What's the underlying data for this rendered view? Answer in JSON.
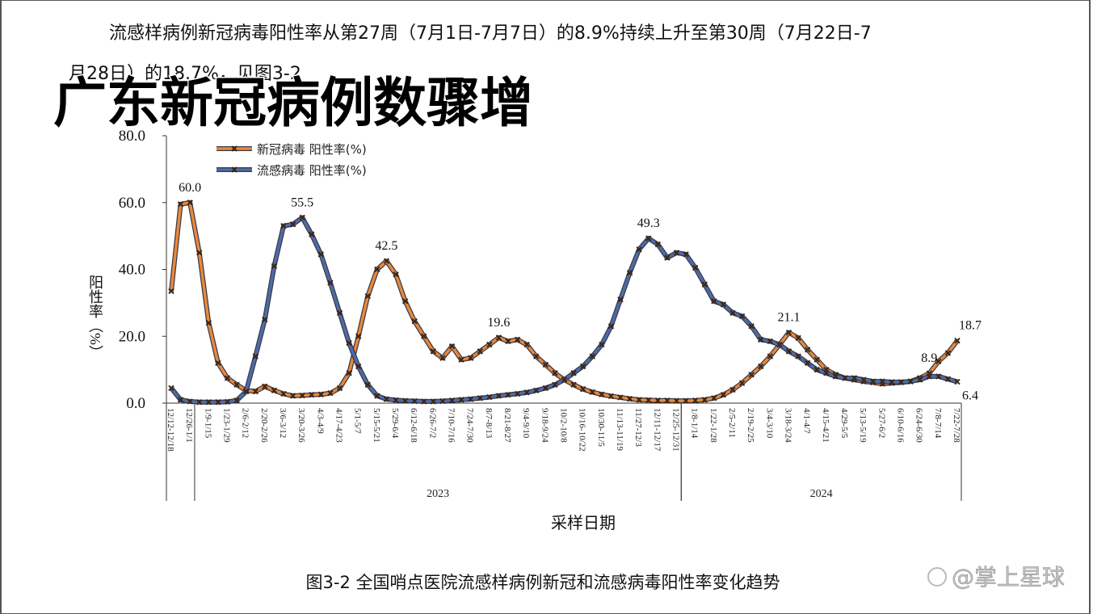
{
  "header": {
    "line1": "流感样病例新冠病毒阳性率从第27周（7月1日-7月7日）的8.9%持续上升至第30周（7月22日-7",
    "line2": "月28日）的18.7%，见图3-2"
  },
  "overlay_title": "广东新冠病例数骤增",
  "chart_data": {
    "type": "line",
    "y_label": "阳性率（%）",
    "x_label": "采样日期",
    "categories": [
      "12/12-12/18",
      null,
      "12/26-1/1",
      null,
      "1/9-1/15",
      null,
      "1/23-1/29",
      null,
      "2/6-2/12",
      null,
      "2/20-2/26",
      null,
      "3/6-3/12",
      null,
      "3/20-3/26",
      null,
      "4/3-4/9",
      null,
      "4/17-4/23",
      null,
      "5/1-5/7",
      null,
      "5/15-5/21",
      null,
      "5/29-6/4",
      null,
      "6/12-6/18",
      null,
      "6/26-7/2",
      null,
      "7/10-7/16",
      null,
      "7/24-7/30",
      null,
      "8/7-8/13",
      null,
      "8/21-8/27",
      null,
      "9/4-9/10",
      null,
      "9/18-9/24",
      null,
      "10/2-10/8",
      null,
      "10/16-10/22",
      null,
      "10/30-11/5",
      null,
      "11/13-11/19",
      null,
      "11/27-12/3",
      null,
      "12/11-12/17",
      null,
      "12/25-12/31",
      null,
      "1/8-1/14",
      null,
      "1/22-1/28",
      null,
      "2/5-2/11",
      null,
      "2/19-2/25",
      null,
      "3/4-3/10",
      null,
      "3/18-3/24",
      null,
      "4/1-4/7",
      null,
      "4/15-4/21",
      null,
      "4/29-5/5",
      null,
      "5/13-5/19",
      null,
      "5/27-6/2",
      null,
      "6/10-6/16",
      null,
      "6/24-6/30",
      null,
      "7/8-7/14",
      null,
      "7/22-7/28"
    ],
    "x_groups": [
      {
        "label": "2023",
        "start": 3,
        "end": 54
      },
      {
        "label": "2024",
        "start": 55,
        "end": 84
      }
    ],
    "series": [
      {
        "name": "新冠病毒 阳性率(%)",
        "color": "#e8893a",
        "values": [
          33.5,
          59.5,
          60,
          45,
          24,
          12,
          7.5,
          5.5,
          3.8,
          3.5,
          5,
          3.8,
          2.8,
          2.2,
          2.3,
          2.5,
          2.6,
          3,
          4.5,
          9,
          20,
          32,
          40,
          42.5,
          38.5,
          30.5,
          24.5,
          20,
          15.5,
          13.5,
          17,
          13,
          13.5,
          15.5,
          17.5,
          19.6,
          18.5,
          19,
          17.5,
          14,
          11.5,
          9,
          7,
          5.5,
          4.2,
          3.3,
          2.6,
          2.1,
          1.7,
          1.3,
          1,
          0.9,
          0.8,
          0.8,
          0.7,
          0.7,
          0.8,
          1,
          1.5,
          2.5,
          4,
          6,
          8.5,
          11,
          14,
          17.5,
          21.1,
          19.5,
          16,
          13,
          10,
          8.5,
          7.5,
          7,
          6.5,
          6.2,
          5.8,
          6,
          6.2,
          6.5,
          7.5,
          8.9,
          12.5,
          15,
          18.7
        ],
        "value_labels": [
          null,
          null,
          "60.0",
          null,
          null,
          null,
          null,
          null,
          null,
          null,
          null,
          null,
          null,
          null,
          null,
          null,
          null,
          null,
          null,
          null,
          null,
          null,
          null,
          "42.5",
          null,
          null,
          null,
          null,
          null,
          null,
          null,
          null,
          null,
          null,
          null,
          "19.6",
          null,
          null,
          null,
          null,
          null,
          null,
          null,
          null,
          null,
          null,
          null,
          null,
          null,
          null,
          null,
          null,
          null,
          null,
          null,
          null,
          null,
          null,
          null,
          null,
          null,
          null,
          null,
          null,
          null,
          null,
          "21.1",
          null,
          null,
          null,
          null,
          null,
          null,
          null,
          null,
          null,
          null,
          null,
          null,
          null,
          null,
          "8.9",
          null,
          null,
          "18.7"
        ]
      },
      {
        "name": "流感病毒 阳性率(%)",
        "color": "#4d6ca8",
        "values": [
          4.5,
          1,
          0.5,
          0.3,
          0.3,
          0.3,
          0.4,
          0.8,
          3.5,
          14,
          25,
          41,
          53,
          53.5,
          55.5,
          50.5,
          44.5,
          36,
          27,
          18,
          11,
          5.5,
          2.2,
          1.2,
          0.9,
          0.7,
          0.6,
          0.5,
          0.5,
          0.6,
          0.8,
          1,
          1.2,
          1.5,
          1.8,
          2.2,
          2.5,
          2.8,
          3.2,
          3.8,
          4.5,
          5.5,
          7,
          9,
          11,
          14,
          17.5,
          23,
          31,
          39,
          46,
          49.3,
          47.5,
          43.5,
          45,
          44.5,
          40.5,
          35.5,
          30.5,
          29.5,
          27,
          26,
          23,
          19,
          18.5,
          17.5,
          15.5,
          14,
          12,
          10,
          9,
          8,
          7.5,
          7.5,
          7,
          6.5,
          6.5,
          6.3,
          6.3,
          6.5,
          7,
          8,
          8,
          7.2,
          6.4
        ],
        "value_labels": [
          null,
          null,
          null,
          null,
          null,
          null,
          null,
          null,
          null,
          null,
          null,
          null,
          null,
          null,
          "55.5",
          null,
          null,
          null,
          null,
          null,
          null,
          null,
          null,
          null,
          null,
          null,
          null,
          null,
          null,
          null,
          null,
          null,
          null,
          null,
          null,
          null,
          null,
          null,
          null,
          null,
          null,
          null,
          null,
          null,
          null,
          null,
          null,
          null,
          null,
          null,
          null,
          "49.3",
          null,
          null,
          null,
          null,
          null,
          null,
          null,
          null,
          null,
          null,
          null,
          null,
          null,
          null,
          null,
          null,
          null,
          null,
          null,
          null,
          null,
          null,
          null,
          null,
          null,
          null,
          null,
          null,
          null,
          null,
          null,
          null,
          "6.4"
        ]
      }
    ],
    "ylim": [
      0,
      80
    ],
    "yticks": [
      {
        "value": 0,
        "label": "0.0"
      },
      {
        "value": 20,
        "label": "20.0"
      },
      {
        "value": 40,
        "label": "40.0"
      },
      {
        "value": 60,
        "label": "60.0"
      },
      {
        "value": 80,
        "label": "80.0"
      }
    ],
    "grid": false,
    "legend": "top-left",
    "marker_color": "#3a2618"
  },
  "caption": "图3-2 全国哨点医院流感样病例新冠和流感病毒阳性率变化趋势",
  "watermark": "@掌上星球"
}
